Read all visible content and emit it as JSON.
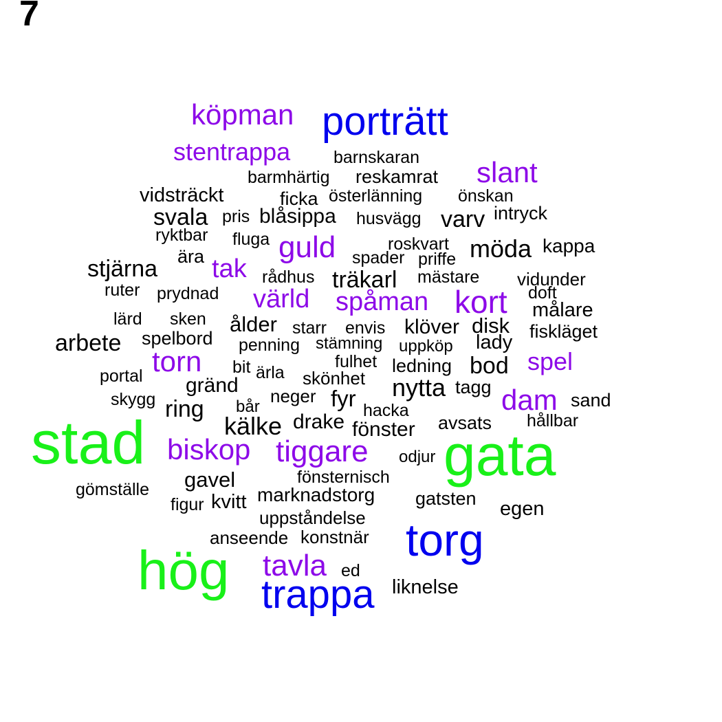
{
  "panel_label": "7",
  "colors": {
    "green": "#19f019",
    "blue": "#0000ee",
    "purple": "#8d0ae8",
    "black": "#000000"
  },
  "words": [
    {
      "text": "stad",
      "color": "green"
    },
    {
      "text": "gata",
      "color": "green"
    },
    {
      "text": "hög",
      "color": "green"
    },
    {
      "text": "torg",
      "color": "blue"
    },
    {
      "text": "trappa",
      "color": "blue"
    },
    {
      "text": "porträtt",
      "color": "blue"
    },
    {
      "text": "köpman",
      "color": "purple"
    },
    {
      "text": "stentrappa",
      "color": "purple"
    },
    {
      "text": "slant",
      "color": "purple"
    },
    {
      "text": "guld",
      "color": "purple"
    },
    {
      "text": "tak",
      "color": "purple"
    },
    {
      "text": "värld",
      "color": "purple"
    },
    {
      "text": "spåman",
      "color": "purple"
    },
    {
      "text": "kort",
      "color": "purple"
    },
    {
      "text": "torn",
      "color": "purple"
    },
    {
      "text": "spel",
      "color": "purple"
    },
    {
      "text": "dam",
      "color": "purple"
    },
    {
      "text": "biskop",
      "color": "purple"
    },
    {
      "text": "tiggare",
      "color": "purple"
    },
    {
      "text": "tavla",
      "color": "purple"
    },
    {
      "text": "barnskaran",
      "color": "black"
    },
    {
      "text": "barmhärtig",
      "color": "black"
    },
    {
      "text": "reskamrat",
      "color": "black"
    },
    {
      "text": "vidsträckt",
      "color": "black"
    },
    {
      "text": "ficka",
      "color": "black"
    },
    {
      "text": "österlänning",
      "color": "black"
    },
    {
      "text": "önskan",
      "color": "black"
    },
    {
      "text": "svala",
      "color": "black"
    },
    {
      "text": "pris",
      "color": "black"
    },
    {
      "text": "blåsippa",
      "color": "black"
    },
    {
      "text": "husvägg",
      "color": "black"
    },
    {
      "text": "varv",
      "color": "black"
    },
    {
      "text": "intryck",
      "color": "black"
    },
    {
      "text": "ryktbar",
      "color": "black"
    },
    {
      "text": "fluga",
      "color": "black"
    },
    {
      "text": "roskvart",
      "color": "black"
    },
    {
      "text": "kappa",
      "color": "black"
    },
    {
      "text": "möda",
      "color": "black"
    },
    {
      "text": "ära",
      "color": "black"
    },
    {
      "text": "spader",
      "color": "black"
    },
    {
      "text": "priffe",
      "color": "black"
    },
    {
      "text": "stjärna",
      "color": "black"
    },
    {
      "text": "rådhus",
      "color": "black"
    },
    {
      "text": "träkarl",
      "color": "black"
    },
    {
      "text": "mästare",
      "color": "black"
    },
    {
      "text": "vidunder",
      "color": "black"
    },
    {
      "text": "ruter",
      "color": "black"
    },
    {
      "text": "prydnad",
      "color": "black"
    },
    {
      "text": "doft",
      "color": "black"
    },
    {
      "text": "målare",
      "color": "black"
    },
    {
      "text": "lärd",
      "color": "black"
    },
    {
      "text": "sken",
      "color": "black"
    },
    {
      "text": "ålder",
      "color": "black"
    },
    {
      "text": "starr",
      "color": "black"
    },
    {
      "text": "envis",
      "color": "black"
    },
    {
      "text": "klöver",
      "color": "black"
    },
    {
      "text": "disk",
      "color": "black"
    },
    {
      "text": "fiskläget",
      "color": "black"
    },
    {
      "text": "arbete",
      "color": "black"
    },
    {
      "text": "spelbord",
      "color": "black"
    },
    {
      "text": "penning",
      "color": "black"
    },
    {
      "text": "stämning",
      "color": "black"
    },
    {
      "text": "uppköp",
      "color": "black"
    },
    {
      "text": "lady",
      "color": "black"
    },
    {
      "text": "fulhet",
      "color": "black"
    },
    {
      "text": "bit",
      "color": "black"
    },
    {
      "text": "ärla",
      "color": "black"
    },
    {
      "text": "ledning",
      "color": "black"
    },
    {
      "text": "bod",
      "color": "black"
    },
    {
      "text": "portal",
      "color": "black"
    },
    {
      "text": "gränd",
      "color": "black"
    },
    {
      "text": "skönhet",
      "color": "black"
    },
    {
      "text": "nytta",
      "color": "black"
    },
    {
      "text": "tagg",
      "color": "black"
    },
    {
      "text": "skygg",
      "color": "black"
    },
    {
      "text": "ring",
      "color": "black"
    },
    {
      "text": "bår",
      "color": "black"
    },
    {
      "text": "neger",
      "color": "black"
    },
    {
      "text": "fyr",
      "color": "black"
    },
    {
      "text": "hacka",
      "color": "black"
    },
    {
      "text": "sand",
      "color": "black"
    },
    {
      "text": "kälke",
      "color": "black"
    },
    {
      "text": "drake",
      "color": "black"
    },
    {
      "text": "fönster",
      "color": "black"
    },
    {
      "text": "avsats",
      "color": "black"
    },
    {
      "text": "hållbar",
      "color": "black"
    },
    {
      "text": "odjur",
      "color": "black"
    },
    {
      "text": "gavel",
      "color": "black"
    },
    {
      "text": "fönsternisch",
      "color": "black"
    },
    {
      "text": "gömställe",
      "color": "black"
    },
    {
      "text": "marknadstorg",
      "color": "black"
    },
    {
      "text": "gatsten",
      "color": "black"
    },
    {
      "text": "figur",
      "color": "black"
    },
    {
      "text": "kvitt",
      "color": "black"
    },
    {
      "text": "egen",
      "color": "black"
    },
    {
      "text": "uppståndelse",
      "color": "black"
    },
    {
      "text": "anseende",
      "color": "black"
    },
    {
      "text": "konstnär",
      "color": "black"
    },
    {
      "text": "ed",
      "color": "black"
    },
    {
      "text": "liknelse",
      "color": "black"
    }
  ]
}
